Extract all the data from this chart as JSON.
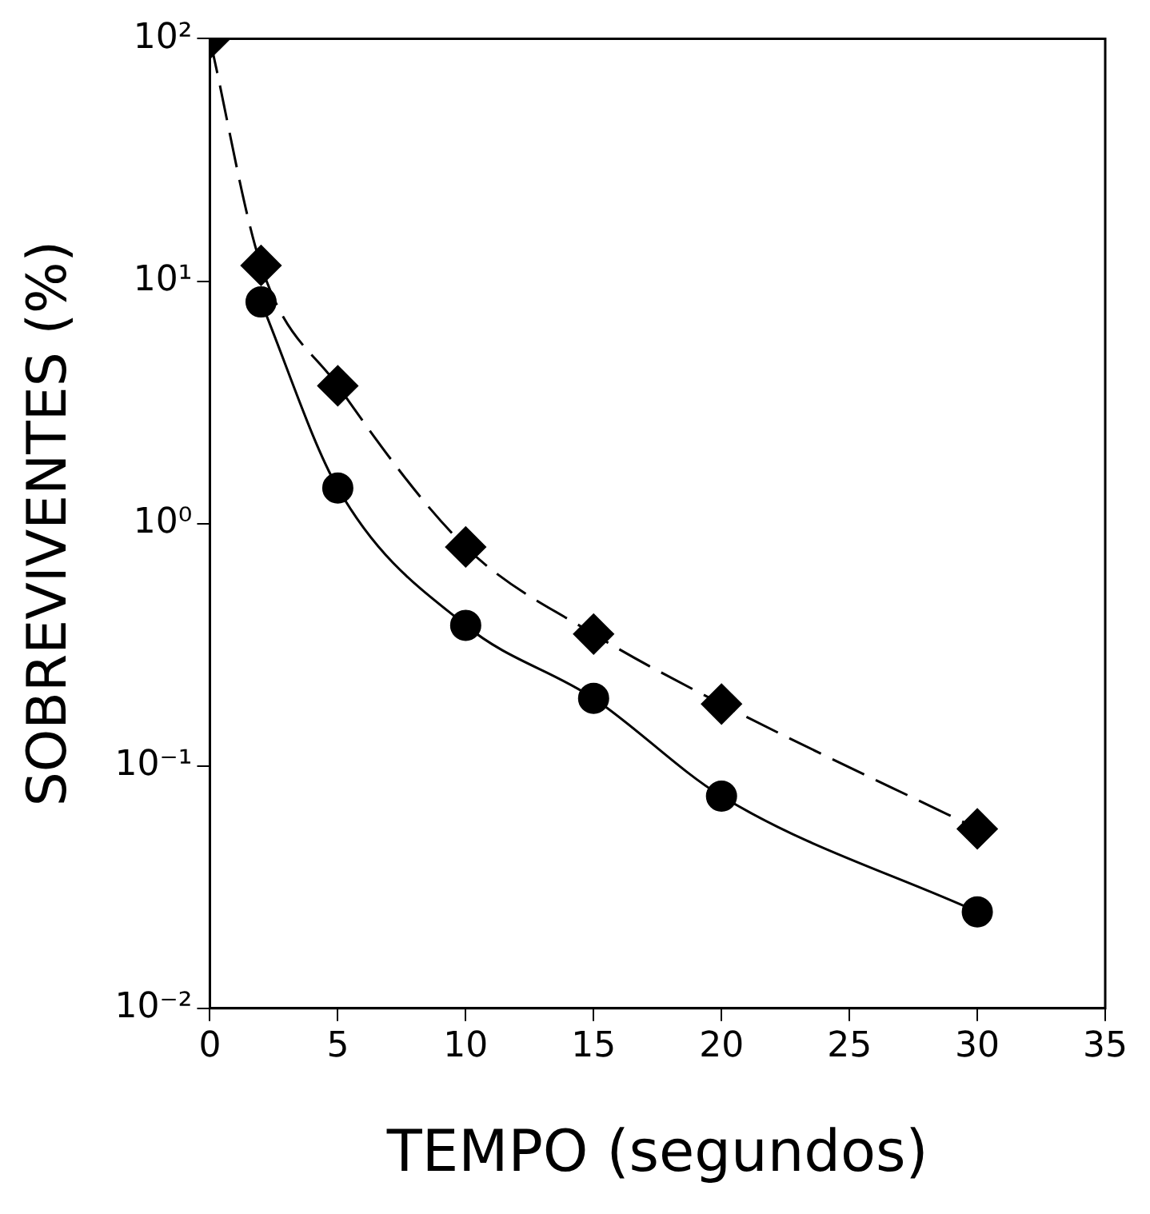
{
  "chart_data": {
    "type": "line",
    "xlabel": "TEMPO (segundos)",
    "ylabel": "SOBREVIVENTES (%)",
    "log": "y",
    "grid": false,
    "legend": false,
    "xlim": [
      0,
      35
    ],
    "xticks": [
      0,
      5,
      10,
      15,
      20,
      25,
      30,
      35
    ],
    "ylim": [
      0.01,
      100
    ],
    "yticks": [
      {
        "value": 100,
        "label": "10²"
      },
      {
        "value": 10,
        "label": "10¹"
      },
      {
        "value": 1,
        "label": "10⁰"
      },
      {
        "value": 0.1,
        "label": "10⁻¹"
      },
      {
        "value": 0.01,
        "label": "10⁻²"
      }
    ],
    "x": [
      0,
      2,
      5,
      10,
      15,
      20,
      30
    ],
    "series": [
      {
        "color": "#000000",
        "marker": "diamond",
        "line_style": "dashed",
        "values": [
          100,
          11.6,
          3.7,
          0.8,
          0.35,
          0.18,
          0.055
        ]
      },
      {
        "color": "#000000",
        "marker": "circle",
        "line_style": "solid",
        "values": [
          null,
          8.2,
          1.4,
          0.38,
          0.19,
          0.075,
          0.025
        ]
      }
    ]
  }
}
